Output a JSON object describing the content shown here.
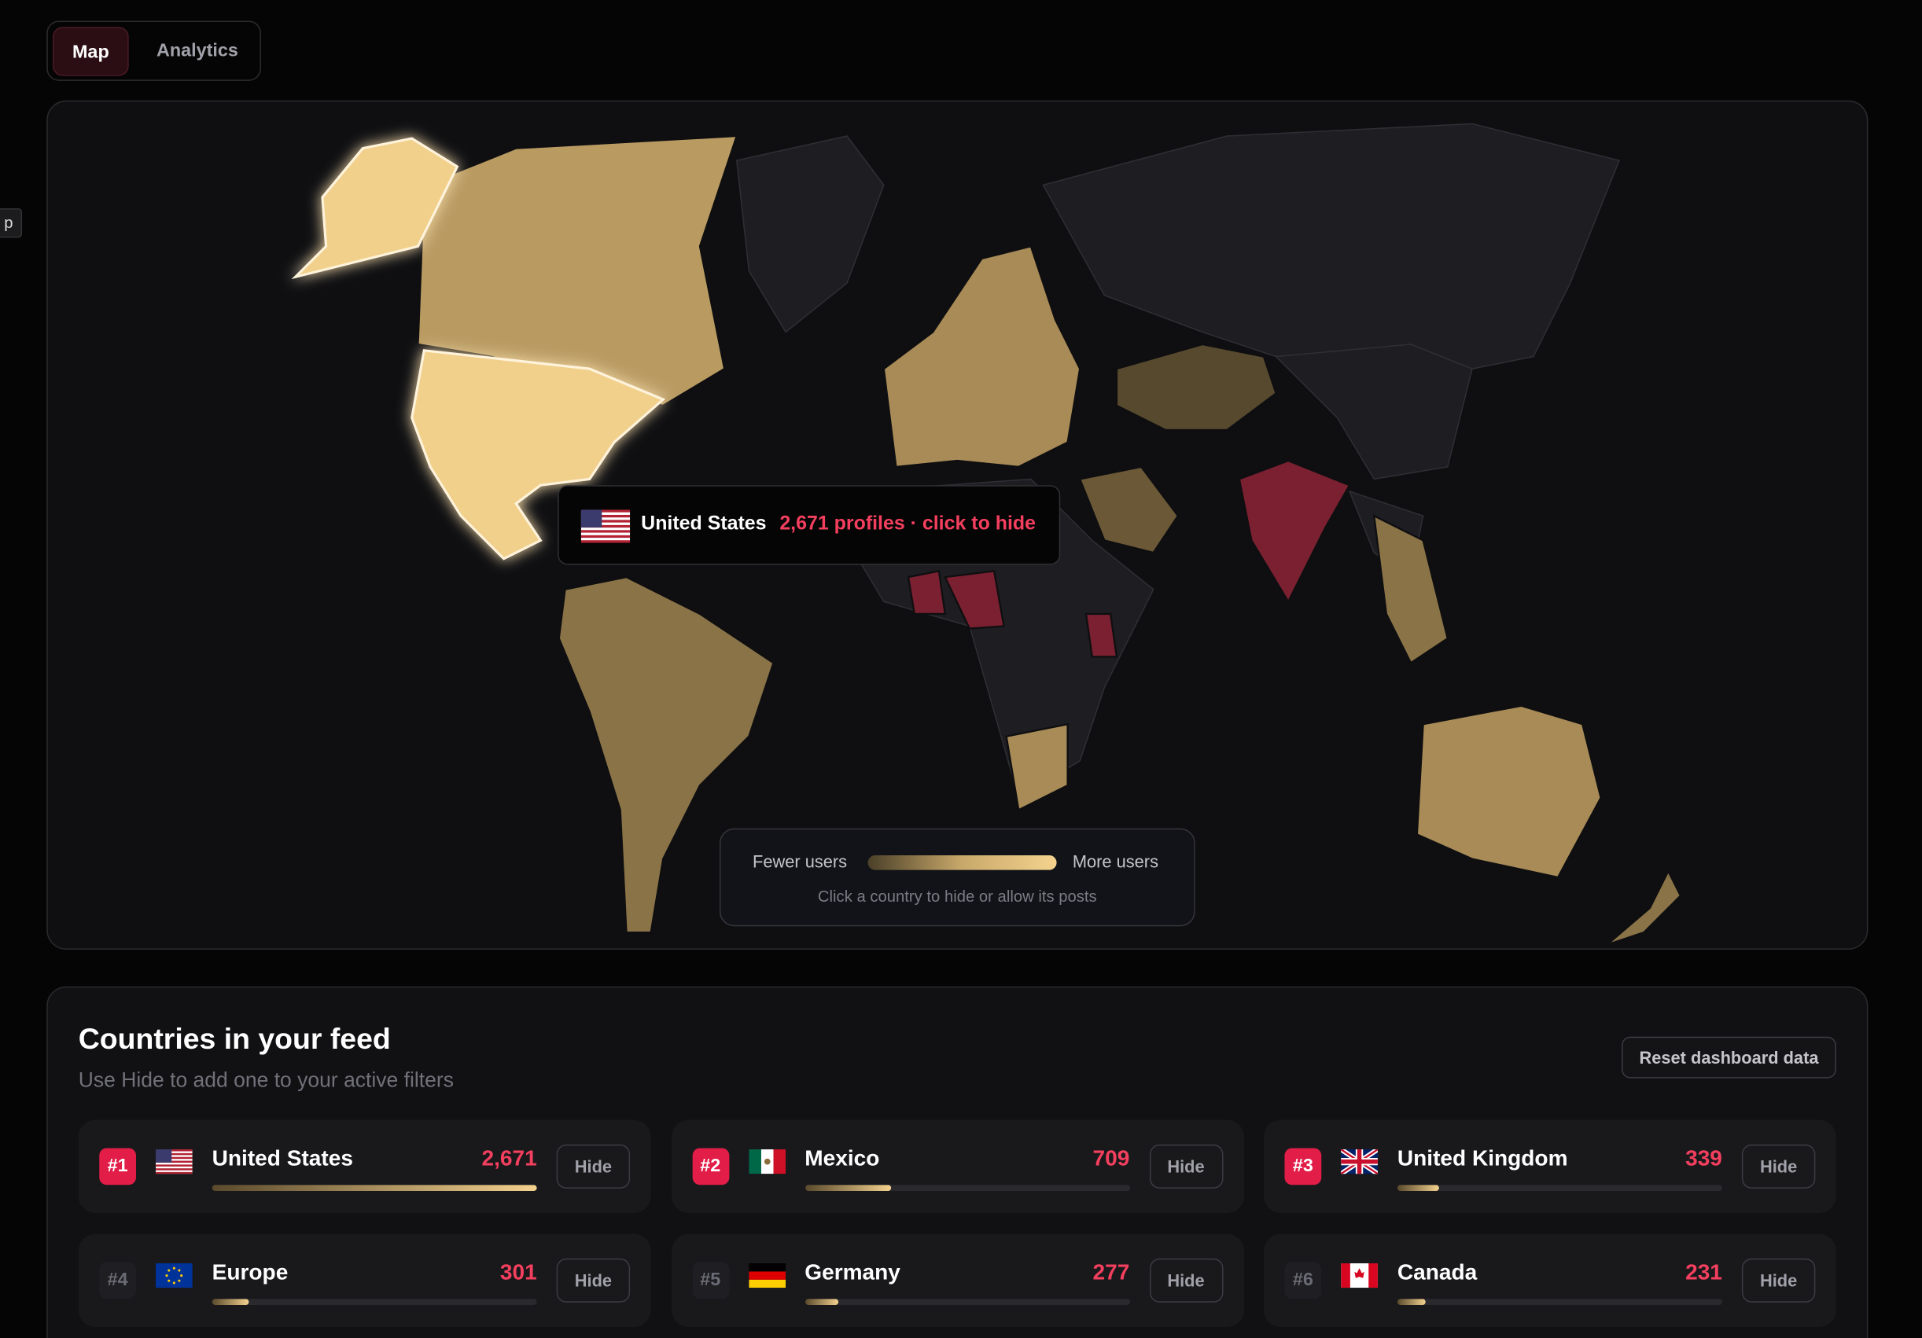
{
  "tabs": [
    "Map",
    "Analytics"
  ],
  "edge_label": "p",
  "tooltip": {
    "country": "United States",
    "detail": "2,671 profiles · click to hide"
  },
  "legend": {
    "low": "Fewer users",
    "high": "More users",
    "hint": "Click a country to hide or allow its posts"
  },
  "section": {
    "title": "Countries in your feed",
    "subtitle": "Use Hide to add one to your active filters",
    "reset": "Reset dashboard data"
  },
  "countries": [
    {
      "rank": "#1",
      "name": "United States",
      "count": 2671,
      "count_label": "2,671",
      "action": "Hide"
    },
    {
      "rank": "#2",
      "name": "Mexico",
      "count": 709,
      "count_label": "709",
      "action": "Hide"
    },
    {
      "rank": "#3",
      "name": "United Kingdom",
      "count": 339,
      "count_label": "339",
      "action": "Hide"
    },
    {
      "rank": "#4",
      "name": "Europe",
      "count": 301,
      "count_label": "301",
      "action": "Hide"
    },
    {
      "rank": "#5",
      "name": "Germany",
      "count": 277,
      "count_label": "277",
      "action": "Hide"
    },
    {
      "rank": "#6",
      "name": "Canada",
      "count": 231,
      "count_label": "231",
      "action": "Hide"
    }
  ]
}
